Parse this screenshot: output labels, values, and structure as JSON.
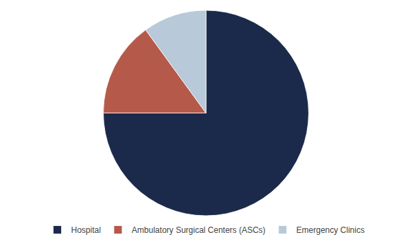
{
  "chart_data": {
    "type": "pie",
    "categories": [
      "Hospital",
      "Ambulatory Surgical Centers (ASCs)",
      "Emergency Clinics"
    ],
    "values": [
      75,
      15,
      10
    ],
    "colors": [
      "#1b2a4a",
      "#b55a4a",
      "#b8c9d9"
    ],
    "legend": "bottom"
  }
}
